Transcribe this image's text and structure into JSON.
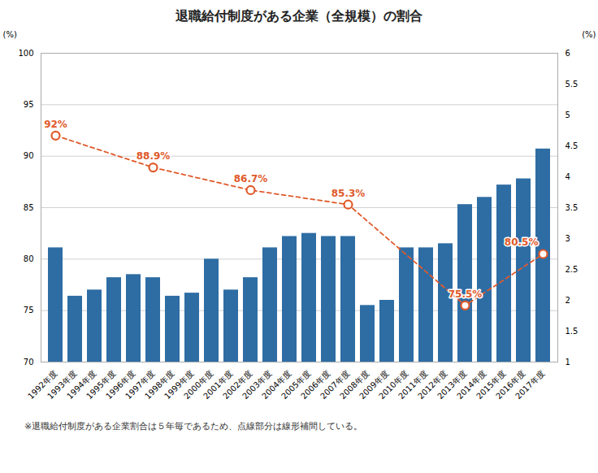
{
  "chart_data": {
    "type": "bar",
    "title": "退職給付制度がある企業（全規模）の割合",
    "categories": [
      "1992年度",
      "1993年度",
      "1994年度",
      "1995年度",
      "1996年度",
      "1997年度",
      "1998年度",
      "1999年度",
      "2000年度",
      "2001年度",
      "2002年度",
      "2003年度",
      "2004年度",
      "2005年度",
      "2006年度",
      "2007年度",
      "2008年度",
      "2009年度",
      "2010年度",
      "2011年度",
      "2012年度",
      "2013年度",
      "2014年度",
      "2015年度",
      "2016年度",
      "2017年度"
    ],
    "series": [
      {
        "type": "bar",
        "color": "#2e6da4",
        "values": [
          81.1,
          76.4,
          77.0,
          78.2,
          78.5,
          78.2,
          76.4,
          76.7,
          80.0,
          77.0,
          78.2,
          81.1,
          82.2,
          82.5,
          82.2,
          82.2,
          75.5,
          76.0,
          81.1,
          81.1,
          81.5,
          85.3,
          86.0,
          87.2,
          87.8,
          90.7
        ]
      },
      {
        "type": "line",
        "color": "#e05a2b",
        "line_style": "dashed",
        "marker": "circle",
        "x": [
          "1992年度",
          "1997年度",
          "2002年度",
          "2007年度",
          "2013年度",
          "2017年度"
        ],
        "values": [
          92.0,
          88.9,
          86.7,
          85.3,
          75.5,
          80.5
        ],
        "value_labels": [
          "92%",
          "88.9%",
          "86.7%",
          "85.3%",
          "75.5%",
          "80.5%"
        ],
        "data_labels": true
      }
    ],
    "ylabel": "(%)",
    "y2label": "(%)",
    "ylim": [
      70,
      100
    ],
    "yticks": [
      70,
      75,
      80,
      85,
      90,
      95,
      100
    ],
    "y2lim": [
      1,
      6
    ],
    "y2ticks": [
      1,
      1.5,
      2,
      2.5,
      3,
      3.5,
      4,
      4.5,
      5,
      5.5,
      6
    ],
    "grid": true,
    "footnote": "※退職給付制度がある企業割合は５年毎であるため、点線部分は線形補間している。"
  }
}
